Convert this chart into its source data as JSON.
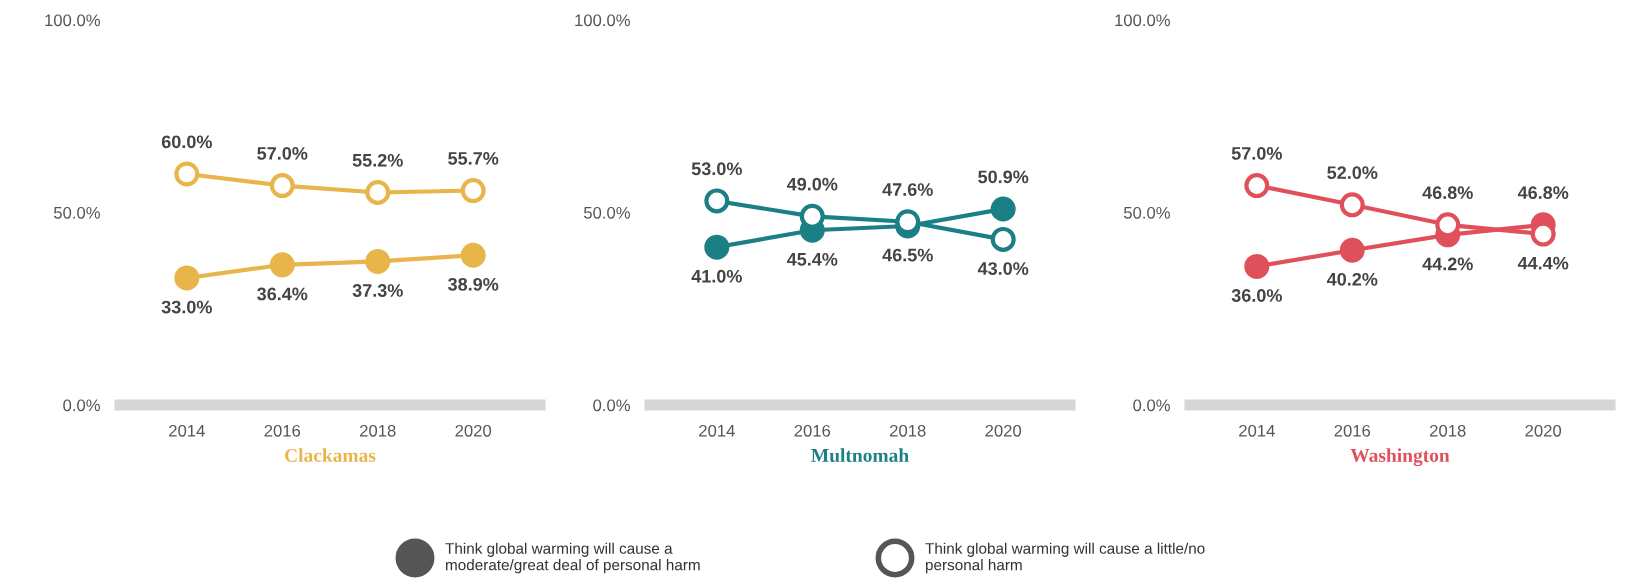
{
  "chart_data": [
    {
      "type": "line",
      "xlabel": "Clackamas",
      "categories": [
        "2014",
        "2016",
        "2018",
        "2020"
      ],
      "ylim": [
        0,
        100
      ],
      "yticks": [
        {
          "value": 0,
          "label": "0.0%"
        },
        {
          "value": 50,
          "label": "50.0%"
        },
        {
          "value": 100,
          "label": "100.0%"
        }
      ],
      "grid": false,
      "annotations": [
        "Think global warming will cause a\nmoderate/great deal of personal harm",
        "Think global warming will cause a little/no\npersonal harm"
      ],
      "series": [
        {
          "color": "#e8b54a",
          "marker": "circle",
          "values": [
            33.0,
            36.4,
            37.3,
            38.9
          ],
          "value_labels": [
            "33.0%",
            "36.4%",
            "37.3%",
            "38.9%"
          ]
        },
        {
          "color": "#e8b54a",
          "marker": "open circle",
          "values": [
            60.0,
            57.0,
            55.2,
            55.7
          ],
          "value_labels": [
            "60.0%",
            "57.0%",
            "55.2%",
            "55.7%"
          ]
        }
      ]
    },
    {
      "type": "line",
      "xlabel": "Multnomah",
      "categories": [
        "2014",
        "2016",
        "2018",
        "2020"
      ],
      "ylim": [
        0,
        100
      ],
      "yticks": [
        {
          "value": 0,
          "label": "0.0%"
        },
        {
          "value": 50,
          "label": "50.0%"
        },
        {
          "value": 100,
          "label": "100.0%"
        }
      ],
      "grid": false,
      "series": [
        {
          "color": "#1b7f86",
          "marker": "circle",
          "values": [
            41.0,
            45.4,
            46.5,
            50.9
          ],
          "value_labels": [
            "41.0%",
            "45.4%",
            "46.5%",
            "50.9%"
          ]
        },
        {
          "color": "#1b7f86",
          "marker": "open circle",
          "values": [
            53.0,
            49.0,
            47.6,
            43.0
          ],
          "value_labels": [
            "53.0%",
            "49.0%",
            "47.6%",
            "43.0%"
          ]
        }
      ]
    },
    {
      "type": "line",
      "xlabel": "Washington",
      "categories": [
        "2014",
        "2016",
        "2018",
        "2020"
      ],
      "ylim": [
        0,
        100
      ],
      "yticks": [
        {
          "value": 0,
          "label": "0.0%"
        },
        {
          "value": 50,
          "label": "50.0%"
        },
        {
          "value": 100,
          "label": "100.0%"
        }
      ],
      "grid": false,
      "series": [
        {
          "color": "#e0505a",
          "marker": "circle",
          "values": [
            36.0,
            40.2,
            44.2,
            46.8
          ],
          "value_labels": [
            "36.0%",
            "40.2%",
            "44.2%",
            "46.8%"
          ]
        },
        {
          "color": "#e0505a",
          "marker": "open circle",
          "values": [
            57.0,
            52.0,
            46.8,
            44.4
          ],
          "value_labels": [
            "57.0%",
            "52.0%",
            "46.8%",
            "44.4%"
          ]
        }
      ]
    }
  ]
}
